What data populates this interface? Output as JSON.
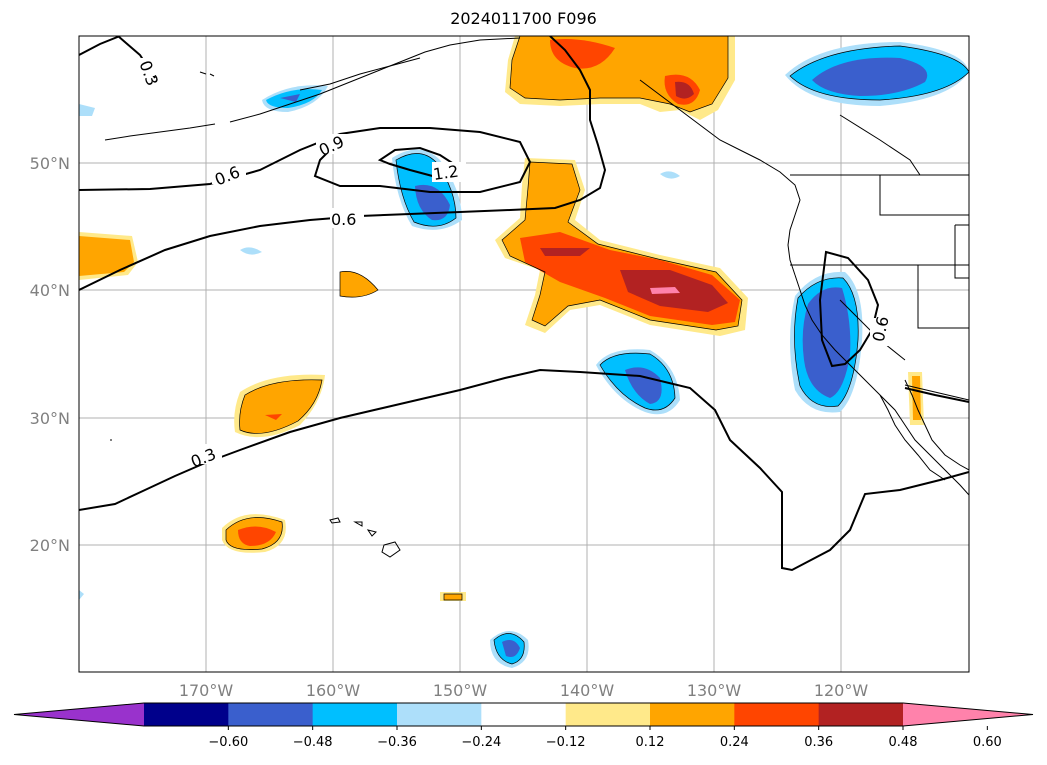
{
  "title": "2024011700 F096",
  "lat_labels": [
    "50°N",
    "40°N",
    "30°N",
    "20°N"
  ],
  "lon_labels": [
    "170°W",
    "160°W",
    "150°W",
    "140°W",
    "130°W",
    "120°W"
  ],
  "contour_labels": [
    "0.3",
    "0.6",
    "0.9",
    "1.2",
    "0.6",
    "0.3",
    "0.6"
  ],
  "colorbar": {
    "ticks": [
      "−0.60",
      "−0.48",
      "−0.36",
      "−0.24",
      "−0.12",
      "0.12",
      "0.24",
      "0.36",
      "0.48",
      "0.60"
    ],
    "colors": [
      "#9932CC",
      "#00008B",
      "#3A5FCD",
      "#00BFFF",
      "#ADDFFA",
      "#FFFFFF",
      "#FFE98A",
      "#FFA500",
      "#FF4500",
      "#B22222",
      "#FF82AB"
    ]
  }
}
